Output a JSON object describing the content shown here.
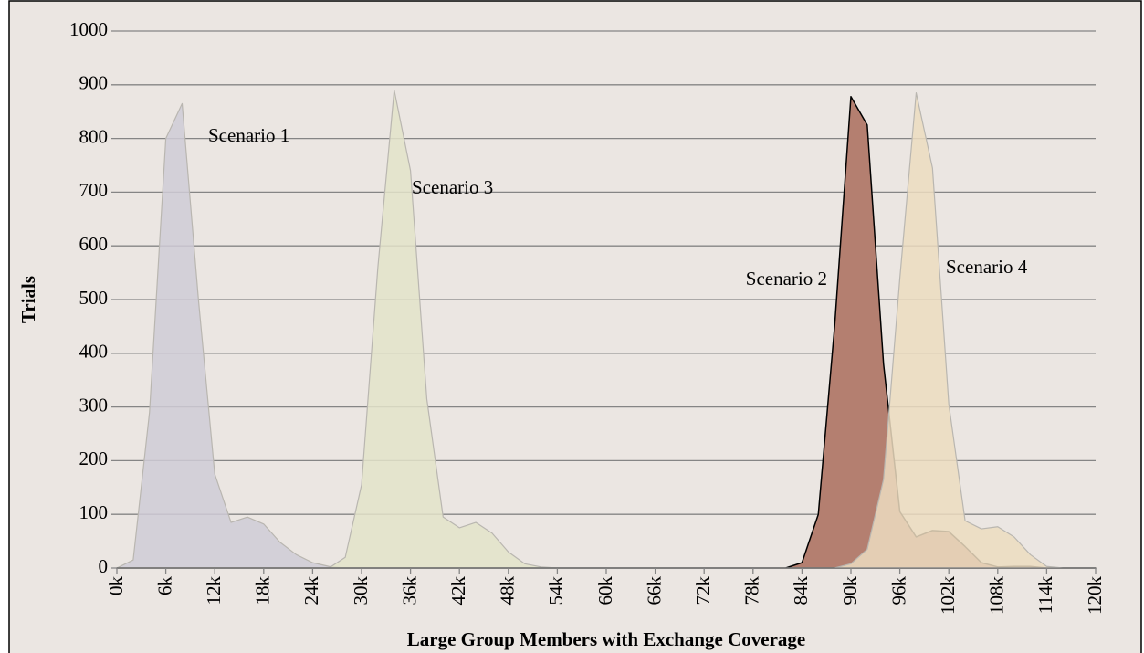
{
  "chart_data": {
    "type": "area",
    "xlabel": "Large Group Members with Exchange Coverage",
    "ylabel": "Trials",
    "x": [
      0,
      2000,
      4000,
      6000,
      8000,
      10000,
      12000,
      14000,
      16000,
      18000,
      20000,
      22000,
      24000,
      26000,
      28000,
      30000,
      32000,
      34000,
      36000,
      38000,
      40000,
      42000,
      44000,
      46000,
      48000,
      50000,
      52000,
      54000,
      56000,
      58000,
      60000,
      62000,
      64000,
      66000,
      68000,
      70000,
      72000,
      74000,
      76000,
      78000,
      80000,
      82000,
      84000,
      86000,
      88000,
      90000,
      92000,
      94000,
      96000,
      98000,
      100000,
      102000,
      104000,
      106000,
      108000,
      110000,
      112000,
      114000,
      116000,
      118000,
      120000
    ],
    "series": [
      {
        "name": "Scenario 1",
        "color": "#cfcbd6",
        "values": [
          0,
          15,
          290,
          800,
          865,
          500,
          175,
          85,
          95,
          82,
          48,
          25,
          10,
          3,
          0,
          0,
          0,
          0,
          0,
          0,
          0,
          0,
          0,
          0,
          0,
          0,
          0,
          0,
          0,
          0,
          0,
          0,
          0,
          0,
          0,
          0,
          0,
          0,
          0,
          0,
          0,
          0,
          0,
          0,
          0,
          0,
          0,
          0,
          0,
          0,
          0,
          0,
          0,
          0,
          0,
          0,
          0,
          0,
          0,
          0,
          0
        ]
      },
      {
        "name": "Scenario 3",
        "color": "#e3e3c9",
        "values": [
          0,
          0,
          0,
          0,
          0,
          0,
          0,
          0,
          0,
          0,
          0,
          0,
          0,
          0,
          20,
          155,
          560,
          890,
          740,
          315,
          95,
          75,
          85,
          65,
          30,
          8,
          2,
          0,
          0,
          0,
          0,
          0,
          0,
          0,
          0,
          0,
          0,
          0,
          0,
          0,
          0,
          0,
          0,
          0,
          0,
          0,
          0,
          0,
          0,
          0,
          0,
          0,
          0,
          0,
          0,
          0,
          0,
          0,
          0,
          0,
          0
        ]
      },
      {
        "name": "Scenario 2",
        "color": "#b47f70",
        "values": [
          0,
          0,
          0,
          0,
          0,
          0,
          0,
          0,
          0,
          0,
          0,
          0,
          0,
          0,
          0,
          0,
          0,
          0,
          0,
          0,
          0,
          0,
          0,
          0,
          0,
          0,
          0,
          0,
          0,
          0,
          0,
          0,
          0,
          0,
          0,
          0,
          0,
          0,
          0,
          0,
          0,
          0,
          10,
          100,
          450,
          878,
          825,
          380,
          105,
          58,
          70,
          68,
          40,
          10,
          2,
          3,
          3,
          0,
          0,
          0,
          0
        ]
      },
      {
        "name": "Scenario 4",
        "color": "#ecdcbf",
        "values": [
          0,
          0,
          0,
          0,
          0,
          0,
          0,
          0,
          0,
          0,
          0,
          0,
          0,
          0,
          0,
          0,
          0,
          0,
          0,
          0,
          0,
          0,
          0,
          0,
          0,
          0,
          0,
          0,
          0,
          0,
          0,
          0,
          0,
          0,
          0,
          0,
          0,
          0,
          0,
          0,
          0,
          0,
          0,
          0,
          0,
          8,
          35,
          165,
          540,
          885,
          745,
          305,
          88,
          73,
          77,
          58,
          25,
          3,
          0,
          0,
          0
        ]
      }
    ],
    "xlim": [
      0,
      120000
    ],
    "xticks": [
      {
        "value": 0,
        "label": "0k"
      },
      {
        "value": 6000,
        "label": "6k"
      },
      {
        "value": 12000,
        "label": "12k"
      },
      {
        "value": 18000,
        "label": "18k"
      },
      {
        "value": 24000,
        "label": "24k"
      },
      {
        "value": 30000,
        "label": "30k"
      },
      {
        "value": 36000,
        "label": "36k"
      },
      {
        "value": 42000,
        "label": "42k"
      },
      {
        "value": 48000,
        "label": "48k"
      },
      {
        "value": 54000,
        "label": "54k"
      },
      {
        "value": 60000,
        "label": "60k"
      },
      {
        "value": 66000,
        "label": "66k"
      },
      {
        "value": 72000,
        "label": "72k"
      },
      {
        "value": 78000,
        "label": "78k"
      },
      {
        "value": 84000,
        "label": "84k"
      },
      {
        "value": 90000,
        "label": "90k"
      },
      {
        "value": 96000,
        "label": "96k"
      },
      {
        "value": 102000,
        "label": "102k"
      },
      {
        "value": 108000,
        "label": "108k"
      },
      {
        "value": 114000,
        "label": "114k"
      },
      {
        "value": 120000,
        "label": "120k"
      }
    ],
    "ylim": [
      0,
      1000
    ],
    "yticks": [
      0,
      100,
      200,
      300,
      400,
      500,
      600,
      700,
      800,
      900,
      1000
    ],
    "grid": true
  }
}
